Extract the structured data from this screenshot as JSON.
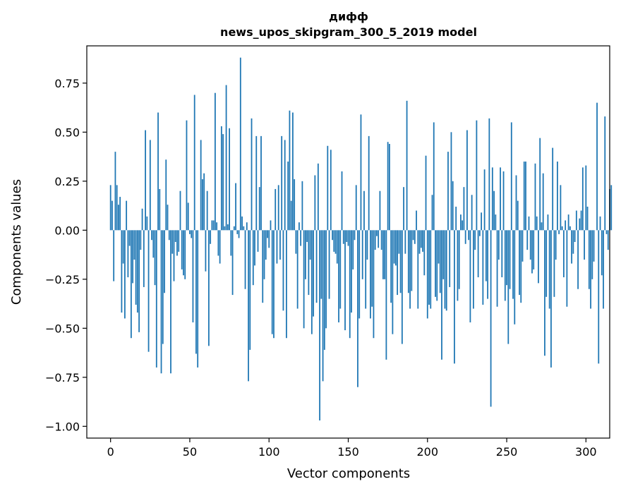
{
  "chart_data": {
    "type": "bar",
    "title": "дифф",
    "subtitle": "news_upos_skipgram_300_5_2019 model",
    "xlabel": "Vector components",
    "ylabel": "Components values",
    "xlim": [
      -15,
      315
    ],
    "ylim": [
      -1.06,
      0.94
    ],
    "xticks": [
      0,
      50,
      100,
      150,
      200,
      250,
      300
    ],
    "yticks": [
      -1.0,
      -0.75,
      -0.5,
      -0.25,
      0.0,
      0.25,
      0.5,
      0.75
    ],
    "ytick_labels": [
      "−1.00",
      "−0.75",
      "−0.50",
      "−0.25",
      "0.00",
      "0.25",
      "0.50",
      "0.75"
    ],
    "grid": false,
    "bar_color": "#1f77b4",
    "x_start": 0,
    "values": [
      0.23,
      0.15,
      -0.26,
      0.4,
      0.23,
      0.13,
      0.17,
      -0.42,
      -0.17,
      -0.45,
      0.15,
      -0.24,
      -0.08,
      -0.55,
      -0.27,
      -0.15,
      -0.38,
      -0.42,
      -0.52,
      -0.1,
      0.11,
      -0.29,
      0.51,
      0.07,
      -0.62,
      0.46,
      -0.05,
      -0.14,
      -0.28,
      -0.7,
      0.6,
      0.21,
      -0.73,
      -0.58,
      -0.32,
      0.36,
      0.13,
      -0.05,
      -0.73,
      -0.12,
      -0.26,
      -0.06,
      -0.13,
      -0.11,
      0.2,
      -0.2,
      -0.23,
      -0.25,
      0.56,
      0.14,
      -0.02,
      -0.04,
      -0.47,
      0.69,
      -0.63,
      -0.7,
      0.0,
      0.46,
      0.26,
      0.29,
      -0.21,
      0.2,
      -0.59,
      -0.07,
      0.05,
      0.05,
      0.7,
      0.04,
      -0.13,
      -0.17,
      0.53,
      0.49,
      0.02,
      0.74,
      0.03,
      0.52,
      -0.13,
      -0.33,
      0.02,
      0.24,
      -0.02,
      -0.04,
      0.88,
      0.07,
      0.02,
      -0.3,
      0.04,
      -0.77,
      -0.61,
      0.57,
      -0.28,
      -0.18,
      0.48,
      -0.11,
      0.22,
      0.48,
      -0.37,
      -0.25,
      -0.15,
      -0.04,
      -0.09,
      0.05,
      -0.53,
      -0.55,
      0.21,
      -0.17,
      0.23,
      -0.15,
      0.48,
      -0.41,
      0.46,
      -0.55,
      0.35,
      0.61,
      0.15,
      0.6,
      0.26,
      -0.12,
      -0.4,
      0.04,
      -0.08,
      0.25,
      -0.5,
      -0.25,
      -0.06,
      -0.33,
      -0.15,
      -0.53,
      -0.44,
      0.28,
      -0.37,
      0.34,
      -0.97,
      -0.35,
      -0.77,
      -0.61,
      -0.5,
      0.43,
      -0.35,
      0.41,
      -0.05,
      -0.11,
      -0.12,
      -0.17,
      -0.47,
      -0.4,
      0.3,
      -0.07,
      -0.51,
      -0.06,
      -0.08,
      -0.55,
      -0.42,
      -0.2,
      -0.05,
      0.23,
      -0.8,
      -0.45,
      0.59,
      -0.25,
      0.2,
      -0.4,
      -0.15,
      0.48,
      -0.45,
      -0.39,
      -0.55,
      -0.1,
      -0.03,
      -0.09,
      0.2,
      -0.1,
      -0.25,
      -0.25,
      -0.66,
      0.45,
      0.44,
      -0.37,
      -0.53,
      -0.17,
      -0.18,
      -0.33,
      -0.12,
      -0.32,
      -0.58,
      0.22,
      -0.12,
      0.66,
      -0.32,
      -0.4,
      -0.31,
      -0.05,
      -0.07,
      0.1,
      -0.4,
      -0.12,
      -0.09,
      -0.11,
      -0.23,
      0.38,
      -0.45,
      -0.38,
      -0.4,
      0.18,
      0.55,
      -0.34,
      -0.36,
      -0.17,
      -0.32,
      -0.66,
      -0.25,
      -0.4,
      -0.41,
      0.4,
      -0.29,
      0.5,
      0.25,
      -0.68,
      0.12,
      -0.36,
      -0.3,
      0.08,
      0.05,
      0.22,
      -0.07,
      0.51,
      -0.05,
      -0.47,
      0.18,
      -0.4,
      -0.1,
      0.56,
      -0.24,
      -0.03,
      0.09,
      -0.38,
      0.31,
      -0.26,
      -0.35,
      0.57,
      -0.9,
      0.32,
      0.2,
      0.08,
      -0.39,
      -0.15,
      0.32,
      -0.24,
      0.3,
      -0.36,
      -0.28,
      -0.58,
      -0.3,
      0.55,
      -0.35,
      -0.48,
      0.28,
      0.15,
      -0.33,
      -0.37,
      -0.16,
      0.35,
      0.35,
      -0.1,
      0.07,
      -0.15,
      -0.22,
      -0.2,
      0.34,
      0.07,
      -0.27,
      0.47,
      0.04,
      0.29,
      -0.64,
      -0.34,
      0.08,
      -0.4,
      -0.7,
      0.42,
      -0.34,
      -0.15,
      0.35,
      -0.02,
      0.23,
      0.02,
      -0.24,
      0.05,
      -0.39,
      0.08,
      0.02,
      -0.17,
      -0.12,
      -0.06,
      0.1,
      -0.3,
      0.06,
      0.1,
      0.32,
      -0.15,
      0.33,
      0.12,
      -0.3,
      -0.4,
      -0.25,
      -0.16,
      0.0,
      0.65,
      -0.68,
      0.07,
      -0.23,
      -0.4,
      0.58,
      -0.02,
      -0.1,
      0.21,
      0.23
    ]
  }
}
